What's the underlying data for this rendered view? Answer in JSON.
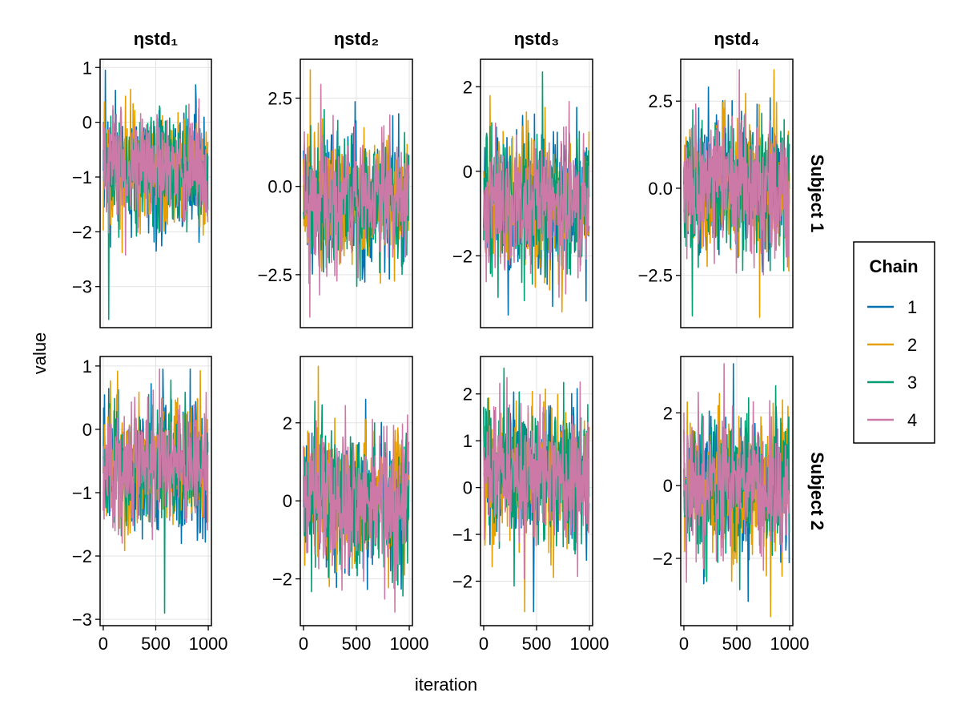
{
  "chart_data": {
    "type": "line",
    "title": "",
    "xlabel": "iteration",
    "ylabel": "value",
    "legend_title": "Chain",
    "legend_placement": "right",
    "iterations": 1000,
    "column_titles": [
      "ηstd₁",
      "ηstd₂",
      "ηstd₃",
      "ηstd₄"
    ],
    "row_titles": [
      "Subject 1",
      "Subject 2"
    ],
    "series": [
      {
        "name": "1",
        "color": "#0072b2"
      },
      {
        "name": "2",
        "color": "#e69f00"
      },
      {
        "name": "3",
        "color": "#009e73"
      },
      {
        "name": "4",
        "color": "#cc79a7"
      }
    ],
    "x_ticks": [
      0,
      500,
      1000
    ],
    "x_tick_labels": [
      "0",
      "500",
      "1000"
    ],
    "xlim": [
      -30,
      1030
    ],
    "panels": [
      {
        "row": 0,
        "col": 0,
        "ylim": [
          -3.75,
          1.15
        ],
        "ticks": [
          1,
          0,
          -1,
          -2,
          -3
        ],
        "tick_labels": [
          "1",
          "0",
          "−1",
          "−2",
          "−3"
        ],
        "mean": -0.9,
        "sd": 0.6,
        "min": -3.6,
        "max": 0.95
      },
      {
        "row": 0,
        "col": 1,
        "ylim": [
          -4.0,
          3.6
        ],
        "ticks": [
          2.5,
          0.0,
          -2.5
        ],
        "tick_labels": [
          "2.5",
          "0.0",
          "−2.5"
        ],
        "mean": -0.4,
        "sd": 1.05,
        "min": -3.7,
        "max": 3.3
      },
      {
        "row": 0,
        "col": 2,
        "ylim": [
          -3.7,
          2.65
        ],
        "ticks": [
          2,
          0,
          -2
        ],
        "tick_labels": [
          "2",
          "0",
          "−2"
        ],
        "mean": -0.75,
        "sd": 0.9,
        "min": -3.4,
        "max": 2.35
      },
      {
        "row": 0,
        "col": 3,
        "ylim": [
          -4.0,
          3.7
        ],
        "ticks": [
          2.5,
          0.0,
          -2.5
        ],
        "tick_labels": [
          "2.5",
          "0.0",
          "−2.5"
        ],
        "mean": 0.05,
        "sd": 1.05,
        "min": -3.7,
        "max": 3.4
      },
      {
        "row": 1,
        "col": 0,
        "ylim": [
          -3.1,
          1.15
        ],
        "ticks": [
          1,
          0,
          -1,
          -2,
          -3
        ],
        "tick_labels": [
          "1",
          "0",
          "−1",
          "−2",
          "−3"
        ],
        "mean": -0.6,
        "sd": 0.55,
        "min": -2.9,
        "max": 0.95
      },
      {
        "row": 1,
        "col": 1,
        "ylim": [
          -3.2,
          3.7
        ],
        "ticks": [
          2,
          0,
          -2
        ],
        "tick_labels": [
          "2",
          "0",
          "−2"
        ],
        "mean": 0.0,
        "sd": 0.95,
        "min": -2.85,
        "max": 3.45
      },
      {
        "row": 1,
        "col": 2,
        "ylim": [
          -2.95,
          2.8
        ],
        "ticks": [
          2,
          1,
          0,
          -1,
          -2
        ],
        "tick_labels": [
          "2",
          "1",
          "0",
          "−1",
          "−2"
        ],
        "mean": 0.3,
        "sd": 0.8,
        "min": -2.65,
        "max": 2.55
      },
      {
        "row": 1,
        "col": 3,
        "ylim": [
          -3.85,
          3.55
        ],
        "ticks": [
          2,
          0,
          -2
        ],
        "tick_labels": [
          "2",
          "0",
          "−2"
        ],
        "mean": 0.0,
        "sd": 1.0,
        "min": -3.6,
        "max": 3.35
      }
    ]
  }
}
